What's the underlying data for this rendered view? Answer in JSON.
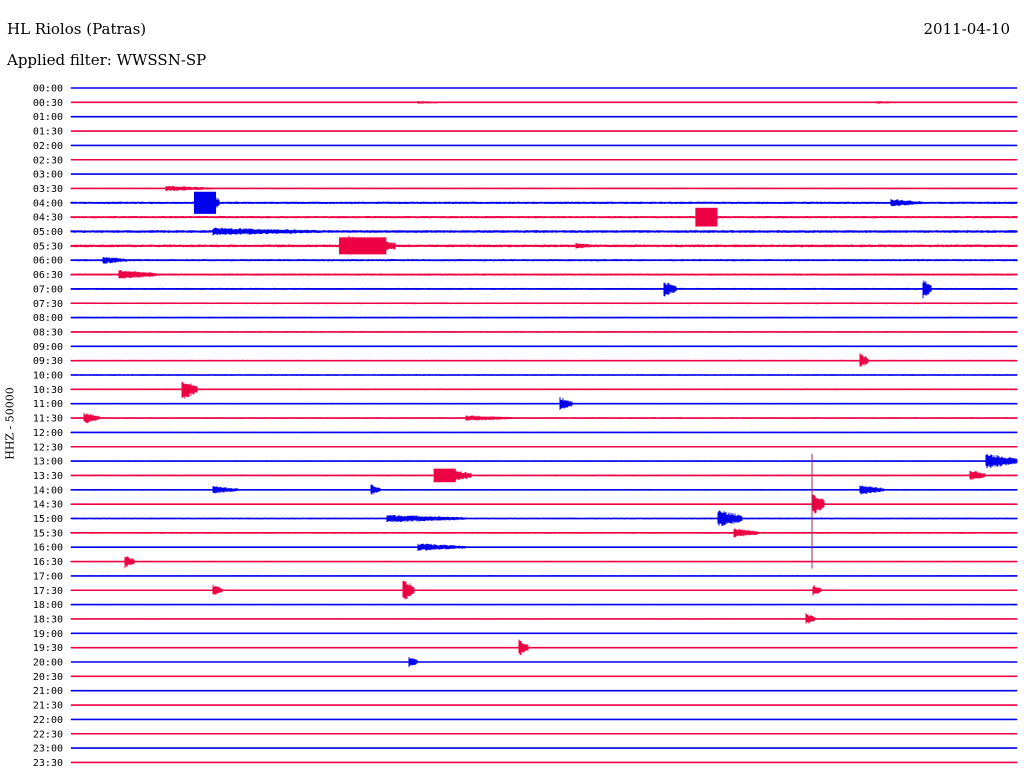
{
  "header": {
    "station": "HL Riolos (Patras)",
    "date": "2011-04-10",
    "filter_label": "Applied filter: WWSSN-SP"
  },
  "colors": {
    "even_row": "#0000ee",
    "odd_row": "#ee0044",
    "marker": "#9a2c5a"
  },
  "chart_data": {
    "type": "line",
    "title": "HL Riolos (Patras)",
    "subtitle": "Applied filter: WWSSN-SP",
    "ylabel": "HHZ - 50000",
    "xlabel": "",
    "grid": false,
    "row_labels": [
      "00:00",
      "00:30",
      "01:00",
      "01:30",
      "02:00",
      "02:30",
      "03:00",
      "03:30",
      "04:00",
      "04:30",
      "05:00",
      "05:30",
      "06:00",
      "06:30",
      "07:00",
      "07:30",
      "08:00",
      "08:30",
      "09:00",
      "09:30",
      "10:00",
      "10:30",
      "11:00",
      "11:30",
      "12:00",
      "12:30",
      "13:00",
      "13:30",
      "14:00",
      "14:30",
      "15:00",
      "15:30",
      "16:00",
      "16:30",
      "17:00",
      "17:30",
      "18:00",
      "18:30",
      "19:00",
      "19:30",
      "20:00",
      "20:30",
      "21:00",
      "21:30",
      "22:00",
      "22:30",
      "23:00",
      "23:30"
    ],
    "row_minutes": 30,
    "noise_amplitude": [
      0.3,
      0.3,
      0.5,
      0.5,
      0.3,
      0.3,
      0.3,
      0.6,
      1.2,
      1.2,
      1.4,
      1.4,
      1.1,
      1.1,
      1.0,
      0.9,
      0.8,
      0.8,
      0.8,
      0.8,
      0.8,
      0.8,
      0.8,
      0.8,
      0.7,
      0.7,
      0.7,
      0.8,
      0.8,
      0.7,
      0.9,
      0.9,
      0.6,
      0.6,
      0.6,
      0.6,
      0.6,
      0.6,
      0.4,
      0.4,
      0.5,
      0.4,
      0.5,
      0.4,
      0.3,
      0.3,
      0.3,
      0.3
    ],
    "events": [
      {
        "row": 1,
        "minute": 11.0,
        "duration": 1.0,
        "amp": 1.5
      },
      {
        "row": 1,
        "minute": 25.5,
        "duration": 1.0,
        "amp": 1.5
      },
      {
        "row": 7,
        "minute": 3.0,
        "duration": 1.5,
        "amp": 3
      },
      {
        "row": 8,
        "minute": 4.0,
        "duration": 0.7,
        "amp": 12
      },
      {
        "row": 8,
        "minute": 26.0,
        "duration": 1.0,
        "amp": 4
      },
      {
        "row": 9,
        "minute": 19.8,
        "duration": 0.7,
        "amp": 10
      },
      {
        "row": 10,
        "minute": 4.5,
        "duration": 3.5,
        "amp": 4
      },
      {
        "row": 11,
        "minute": 8.8,
        "duration": 1.5,
        "amp": 10
      },
      {
        "row": 11,
        "minute": 16.0,
        "duration": 0.8,
        "amp": 3
      },
      {
        "row": 12,
        "minute": 1.0,
        "duration": 0.8,
        "amp": 4
      },
      {
        "row": 13,
        "minute": 1.5,
        "duration": 1.2,
        "amp": 5
      },
      {
        "row": 14,
        "minute": 18.8,
        "duration": 0.4,
        "amp": 8
      },
      {
        "row": 14,
        "minute": 27.0,
        "duration": 0.3,
        "amp": 10
      },
      {
        "row": 19,
        "minute": 25.0,
        "duration": 0.3,
        "amp": 8
      },
      {
        "row": 21,
        "minute": 3.5,
        "duration": 0.5,
        "amp": 11
      },
      {
        "row": 22,
        "minute": 15.5,
        "duration": 0.4,
        "amp": 7
      },
      {
        "row": 23,
        "minute": 0.4,
        "duration": 0.5,
        "amp": 6
      },
      {
        "row": 23,
        "minute": 12.5,
        "duration": 1.5,
        "amp": 3
      },
      {
        "row": 26,
        "minute": 29.0,
        "duration": 1.0,
        "amp": 8
      },
      {
        "row": 27,
        "minute": 12.0,
        "duration": 0.7,
        "amp": 7
      },
      {
        "row": 27,
        "minute": 28.5,
        "duration": 0.5,
        "amp": 6
      },
      {
        "row": 28,
        "minute": 4.5,
        "duration": 0.8,
        "amp": 4
      },
      {
        "row": 28,
        "minute": 9.5,
        "duration": 0.3,
        "amp": 6
      },
      {
        "row": 28,
        "minute": 25.0,
        "duration": 0.8,
        "amp": 5
      },
      {
        "row": 29,
        "minute": 23.5,
        "duration": 0.4,
        "amp": 12
      },
      {
        "row": 30,
        "minute": 20.5,
        "duration": 0.8,
        "amp": 9
      },
      {
        "row": 30,
        "minute": 10.0,
        "duration": 2.5,
        "amp": 4
      },
      {
        "row": 31,
        "minute": 21.0,
        "duration": 0.8,
        "amp": 5
      },
      {
        "row": 32,
        "minute": 11.0,
        "duration": 1.5,
        "amp": 4
      },
      {
        "row": 33,
        "minute": 1.7,
        "duration": 0.3,
        "amp": 7
      },
      {
        "row": 35,
        "minute": 10.5,
        "duration": 0.4,
        "amp": 12
      },
      {
        "row": 35,
        "minute": 4.5,
        "duration": 0.3,
        "amp": 6
      },
      {
        "row": 35,
        "minute": 23.5,
        "duration": 0.3,
        "amp": 6
      },
      {
        "row": 37,
        "minute": 23.3,
        "duration": 0.3,
        "amp": 6
      },
      {
        "row": 39,
        "minute": 14.2,
        "duration": 0.3,
        "amp": 9
      },
      {
        "row": 40,
        "minute": 10.7,
        "duration": 0.3,
        "amp": 6
      }
    ],
    "bursts": [
      {
        "row": 8,
        "minute": 3.9,
        "duration": 0.7,
        "amp": 13
      },
      {
        "row": 9,
        "minute": 19.8,
        "duration": 0.7,
        "amp": 11
      },
      {
        "row": 11,
        "minute": 8.5,
        "duration": 1.5,
        "amp": 10
      },
      {
        "row": 27,
        "minute": 11.5,
        "duration": 0.7,
        "amp": 8
      }
    ],
    "marker": {
      "minute": 23.5,
      "from_row": 25.5,
      "to_row": 33.5
    }
  }
}
